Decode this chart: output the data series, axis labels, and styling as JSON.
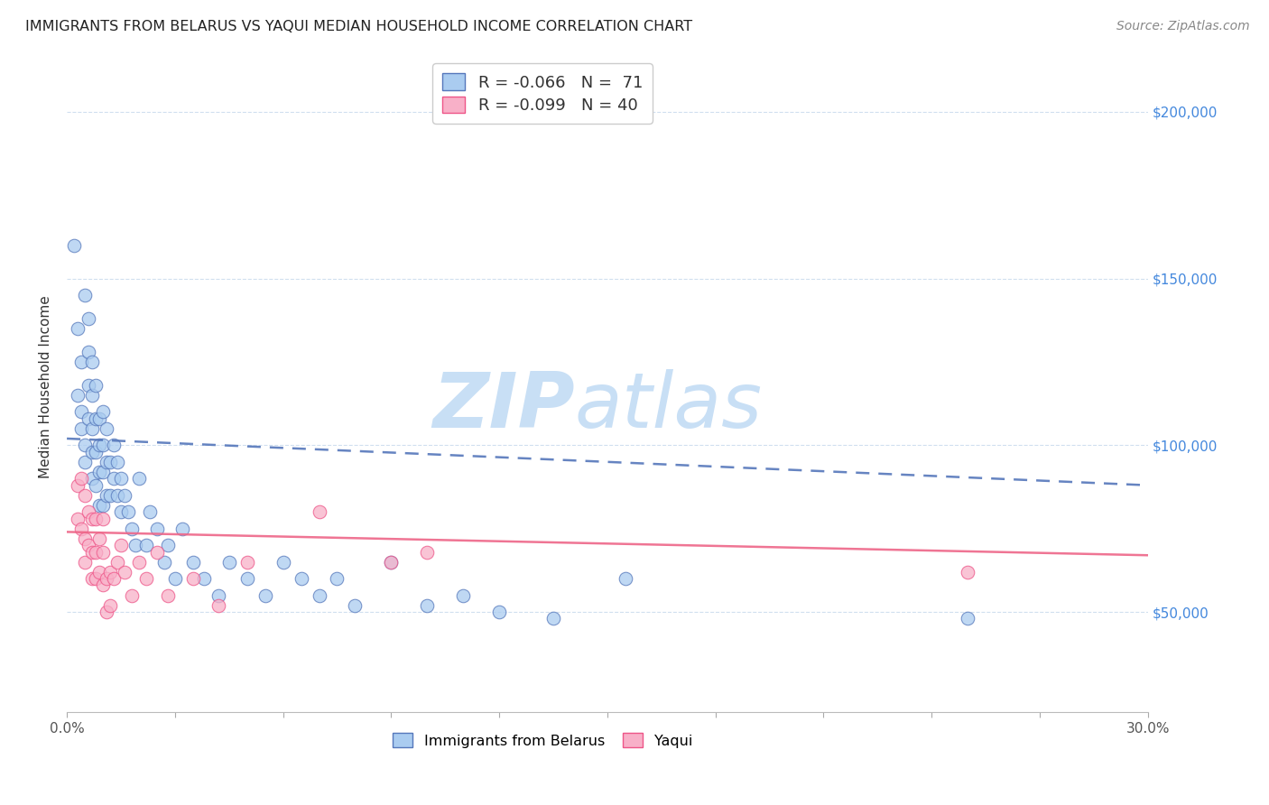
{
  "title": "IMMIGRANTS FROM BELARUS VS YAQUI MEDIAN HOUSEHOLD INCOME CORRELATION CHART",
  "source": "Source: ZipAtlas.com",
  "ylabel": "Median Household Income",
  "ytick_values": [
    50000,
    100000,
    150000,
    200000
  ],
  "ylim": [
    20000,
    215000
  ],
  "xlim": [
    0.0,
    0.3
  ],
  "legend_r1": "R = -0.066",
  "legend_n1": "N =  71",
  "legend_r2": "R = -0.099",
  "legend_n2": "N = 40",
  "color_blue": "#aaccf0",
  "color_pink": "#f8b0c8",
  "line_blue": "#5577bb",
  "line_pink": "#ee5588",
  "trendline_blue_color": "#5577bb",
  "trendline_pink_color": "#ee6688",
  "watermark_zip": "ZIP",
  "watermark_atlas": "atlas",
  "watermark_color": "#c8dff5",
  "blue_x": [
    0.002,
    0.003,
    0.003,
    0.004,
    0.004,
    0.004,
    0.005,
    0.005,
    0.005,
    0.006,
    0.006,
    0.006,
    0.006,
    0.007,
    0.007,
    0.007,
    0.007,
    0.007,
    0.008,
    0.008,
    0.008,
    0.008,
    0.009,
    0.009,
    0.009,
    0.009,
    0.01,
    0.01,
    0.01,
    0.01,
    0.011,
    0.011,
    0.011,
    0.012,
    0.012,
    0.013,
    0.013,
    0.014,
    0.014,
    0.015,
    0.015,
    0.016,
    0.017,
    0.018,
    0.019,
    0.02,
    0.022,
    0.023,
    0.025,
    0.027,
    0.028,
    0.03,
    0.032,
    0.035,
    0.038,
    0.042,
    0.045,
    0.05,
    0.055,
    0.06,
    0.065,
    0.07,
    0.075,
    0.08,
    0.09,
    0.1,
    0.11,
    0.12,
    0.135,
    0.155,
    0.25
  ],
  "blue_y": [
    160000,
    135000,
    115000,
    125000,
    110000,
    105000,
    100000,
    95000,
    145000,
    138000,
    128000,
    118000,
    108000,
    125000,
    115000,
    105000,
    98000,
    90000,
    118000,
    108000,
    98000,
    88000,
    108000,
    100000,
    92000,
    82000,
    110000,
    100000,
    92000,
    82000,
    105000,
    95000,
    85000,
    95000,
    85000,
    100000,
    90000,
    95000,
    85000,
    90000,
    80000,
    85000,
    80000,
    75000,
    70000,
    90000,
    70000,
    80000,
    75000,
    65000,
    70000,
    60000,
    75000,
    65000,
    60000,
    55000,
    65000,
    60000,
    55000,
    65000,
    60000,
    55000,
    60000,
    52000,
    65000,
    52000,
    55000,
    50000,
    48000,
    60000,
    48000
  ],
  "pink_x": [
    0.003,
    0.003,
    0.004,
    0.004,
    0.005,
    0.005,
    0.005,
    0.006,
    0.006,
    0.007,
    0.007,
    0.007,
    0.008,
    0.008,
    0.008,
    0.009,
    0.009,
    0.01,
    0.01,
    0.01,
    0.011,
    0.011,
    0.012,
    0.012,
    0.013,
    0.014,
    0.015,
    0.016,
    0.018,
    0.02,
    0.022,
    0.025,
    0.028,
    0.035,
    0.042,
    0.05,
    0.07,
    0.09,
    0.1,
    0.25
  ],
  "pink_y": [
    88000,
    78000,
    90000,
    75000,
    85000,
    72000,
    65000,
    80000,
    70000,
    78000,
    68000,
    60000,
    78000,
    68000,
    60000,
    72000,
    62000,
    78000,
    68000,
    58000,
    60000,
    50000,
    62000,
    52000,
    60000,
    65000,
    70000,
    62000,
    55000,
    65000,
    60000,
    68000,
    55000,
    60000,
    52000,
    65000,
    80000,
    65000,
    68000,
    62000
  ]
}
